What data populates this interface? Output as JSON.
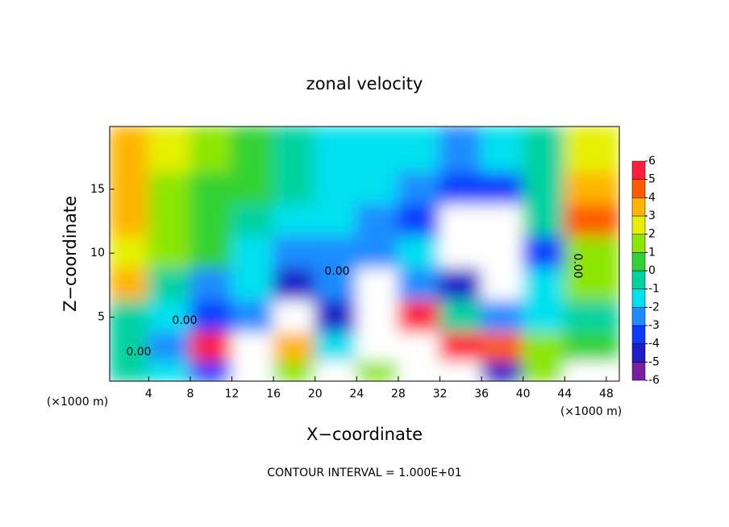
{
  "chart_data": {
    "type": "contour",
    "title": "zonal velocity",
    "xlabel": "X−coordinate",
    "ylabel": "Z−coordinate",
    "x_unit": "(×1000 m)",
    "footer": "CONTOUR INTERVAL = 1.000E+01",
    "xlim": [
      0.25,
      49.25
    ],
    "ylim": [
      0,
      19.9
    ],
    "xticks": [
      4,
      8,
      12,
      16,
      20,
      24,
      28,
      32,
      36,
      40,
      44,
      48
    ],
    "yticks": [
      5,
      10,
      15
    ],
    "x": [
      2,
      6,
      10,
      14,
      18,
      22,
      26,
      30,
      34,
      38,
      42,
      46
    ],
    "y": [
      17.5,
      15,
      12.5,
      10,
      7.5,
      5,
      2.5,
      0.5
    ],
    "z": [
      [
        3,
        2,
        1,
        0,
        -1,
        -1.5,
        -2,
        -2,
        -3,
        -2,
        -1,
        2
      ],
      [
        3,
        1.5,
        0.5,
        0,
        -1,
        -1.5,
        -2,
        -3,
        -3.5,
        -4,
        -1,
        3
      ],
      [
        3.5,
        1.5,
        0.5,
        -0.5,
        -1.5,
        -2,
        -2.5,
        -4,
        -6.5,
        8,
        -1,
        4
      ],
      [
        2,
        1,
        0,
        -1.5,
        -3,
        -3,
        -2.5,
        -2,
        8,
        8,
        -4,
        1
      ],
      [
        3,
        -1,
        -3,
        -2,
        -5,
        -3,
        6.5,
        -3,
        -5,
        8,
        -2,
        1
      ],
      [
        -1,
        -2,
        -4,
        -3,
        6.5,
        -5,
        8,
        5,
        -1,
        -3,
        -2,
        -1
      ],
      [
        -1,
        -3,
        5,
        8,
        3,
        -2,
        8,
        8,
        5,
        4,
        1,
        0
      ],
      [
        -1,
        -2,
        -4,
        6.5,
        1,
        8,
        1,
        6.5,
        8,
        -5,
        1,
        8
      ]
    ],
    "annotations": [
      "0.00",
      "0.00",
      "0.00",
      "0.00"
    ],
    "colorbar": {
      "levels": [
        -6,
        -5,
        -4,
        -3,
        -2,
        -1,
        0,
        1,
        2,
        3,
        4,
        5,
        6
      ],
      "colors": [
        "#7a1fa2",
        "#1e1ec8",
        "#0a3cff",
        "#1e8cff",
        "#00e1f0",
        "#00d2a0",
        "#32d232",
        "#8ce600",
        "#e6f000",
        "#ffb400",
        "#ff5a00",
        "#ff1e3c"
      ],
      "above_color": "#ffffff",
      "below_color": "#ffffff"
    }
  }
}
